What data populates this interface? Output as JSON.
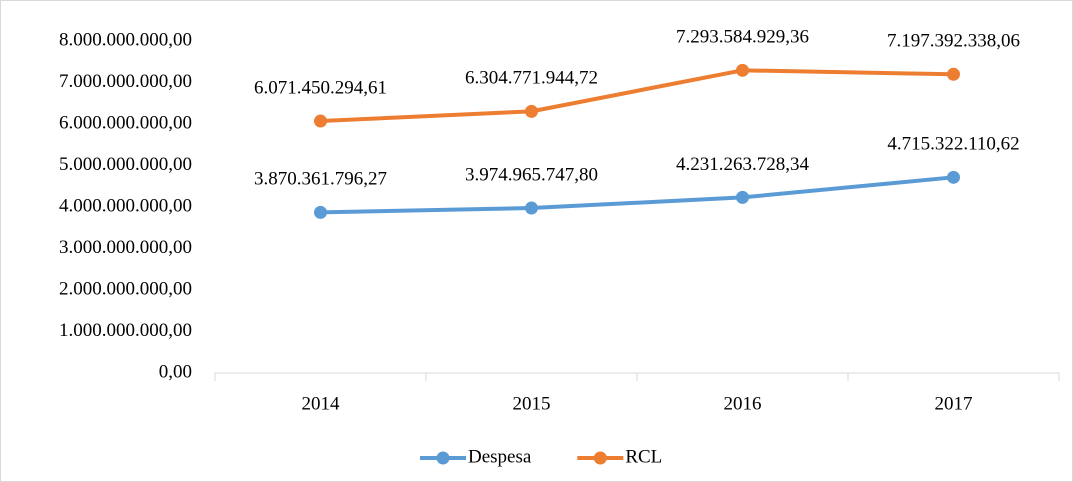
{
  "chart_data": {
    "type": "line",
    "categories": [
      "2014",
      "2015",
      "2016",
      "2017"
    ],
    "series": [
      {
        "name": "Despesa",
        "color": "#5b9bd5",
        "values": [
          3870361796.27,
          3974965747.8,
          4231263728.34,
          4715322110.62
        ],
        "value_labels": [
          "3.870.361.796,27",
          "3.974.965.747,80",
          "4.231.263.728,34",
          "4.715.322.110,62"
        ]
      },
      {
        "name": "RCL",
        "color": "#ed7d31",
        "values": [
          6071450294.61,
          6304771944.72,
          7293584929.36,
          7197392338.06
        ],
        "value_labels": [
          "6.071.450.294,61",
          "6.304.771.944,72",
          "7.293.584.929,36",
          "7.197.392.338,06"
        ]
      }
    ],
    "ylim": [
      0,
      8000000000
    ],
    "yticks": [
      {
        "value": 0,
        "label": "0,00"
      },
      {
        "value": 1000000000,
        "label": "1.000.000.000,00"
      },
      {
        "value": 2000000000,
        "label": "2.000.000.000,00"
      },
      {
        "value": 3000000000,
        "label": "3.000.000.000,00"
      },
      {
        "value": 4000000000,
        "label": "4.000.000.000,00"
      },
      {
        "value": 5000000000,
        "label": "5.000.000.000,00"
      },
      {
        "value": 6000000000,
        "label": "6.000.000.000,00"
      },
      {
        "value": 7000000000,
        "label": "7.000.000.000,00"
      },
      {
        "value": 8000000000,
        "label": "8.000.000.000,00"
      }
    ],
    "grid": false,
    "legend": "bottom"
  }
}
